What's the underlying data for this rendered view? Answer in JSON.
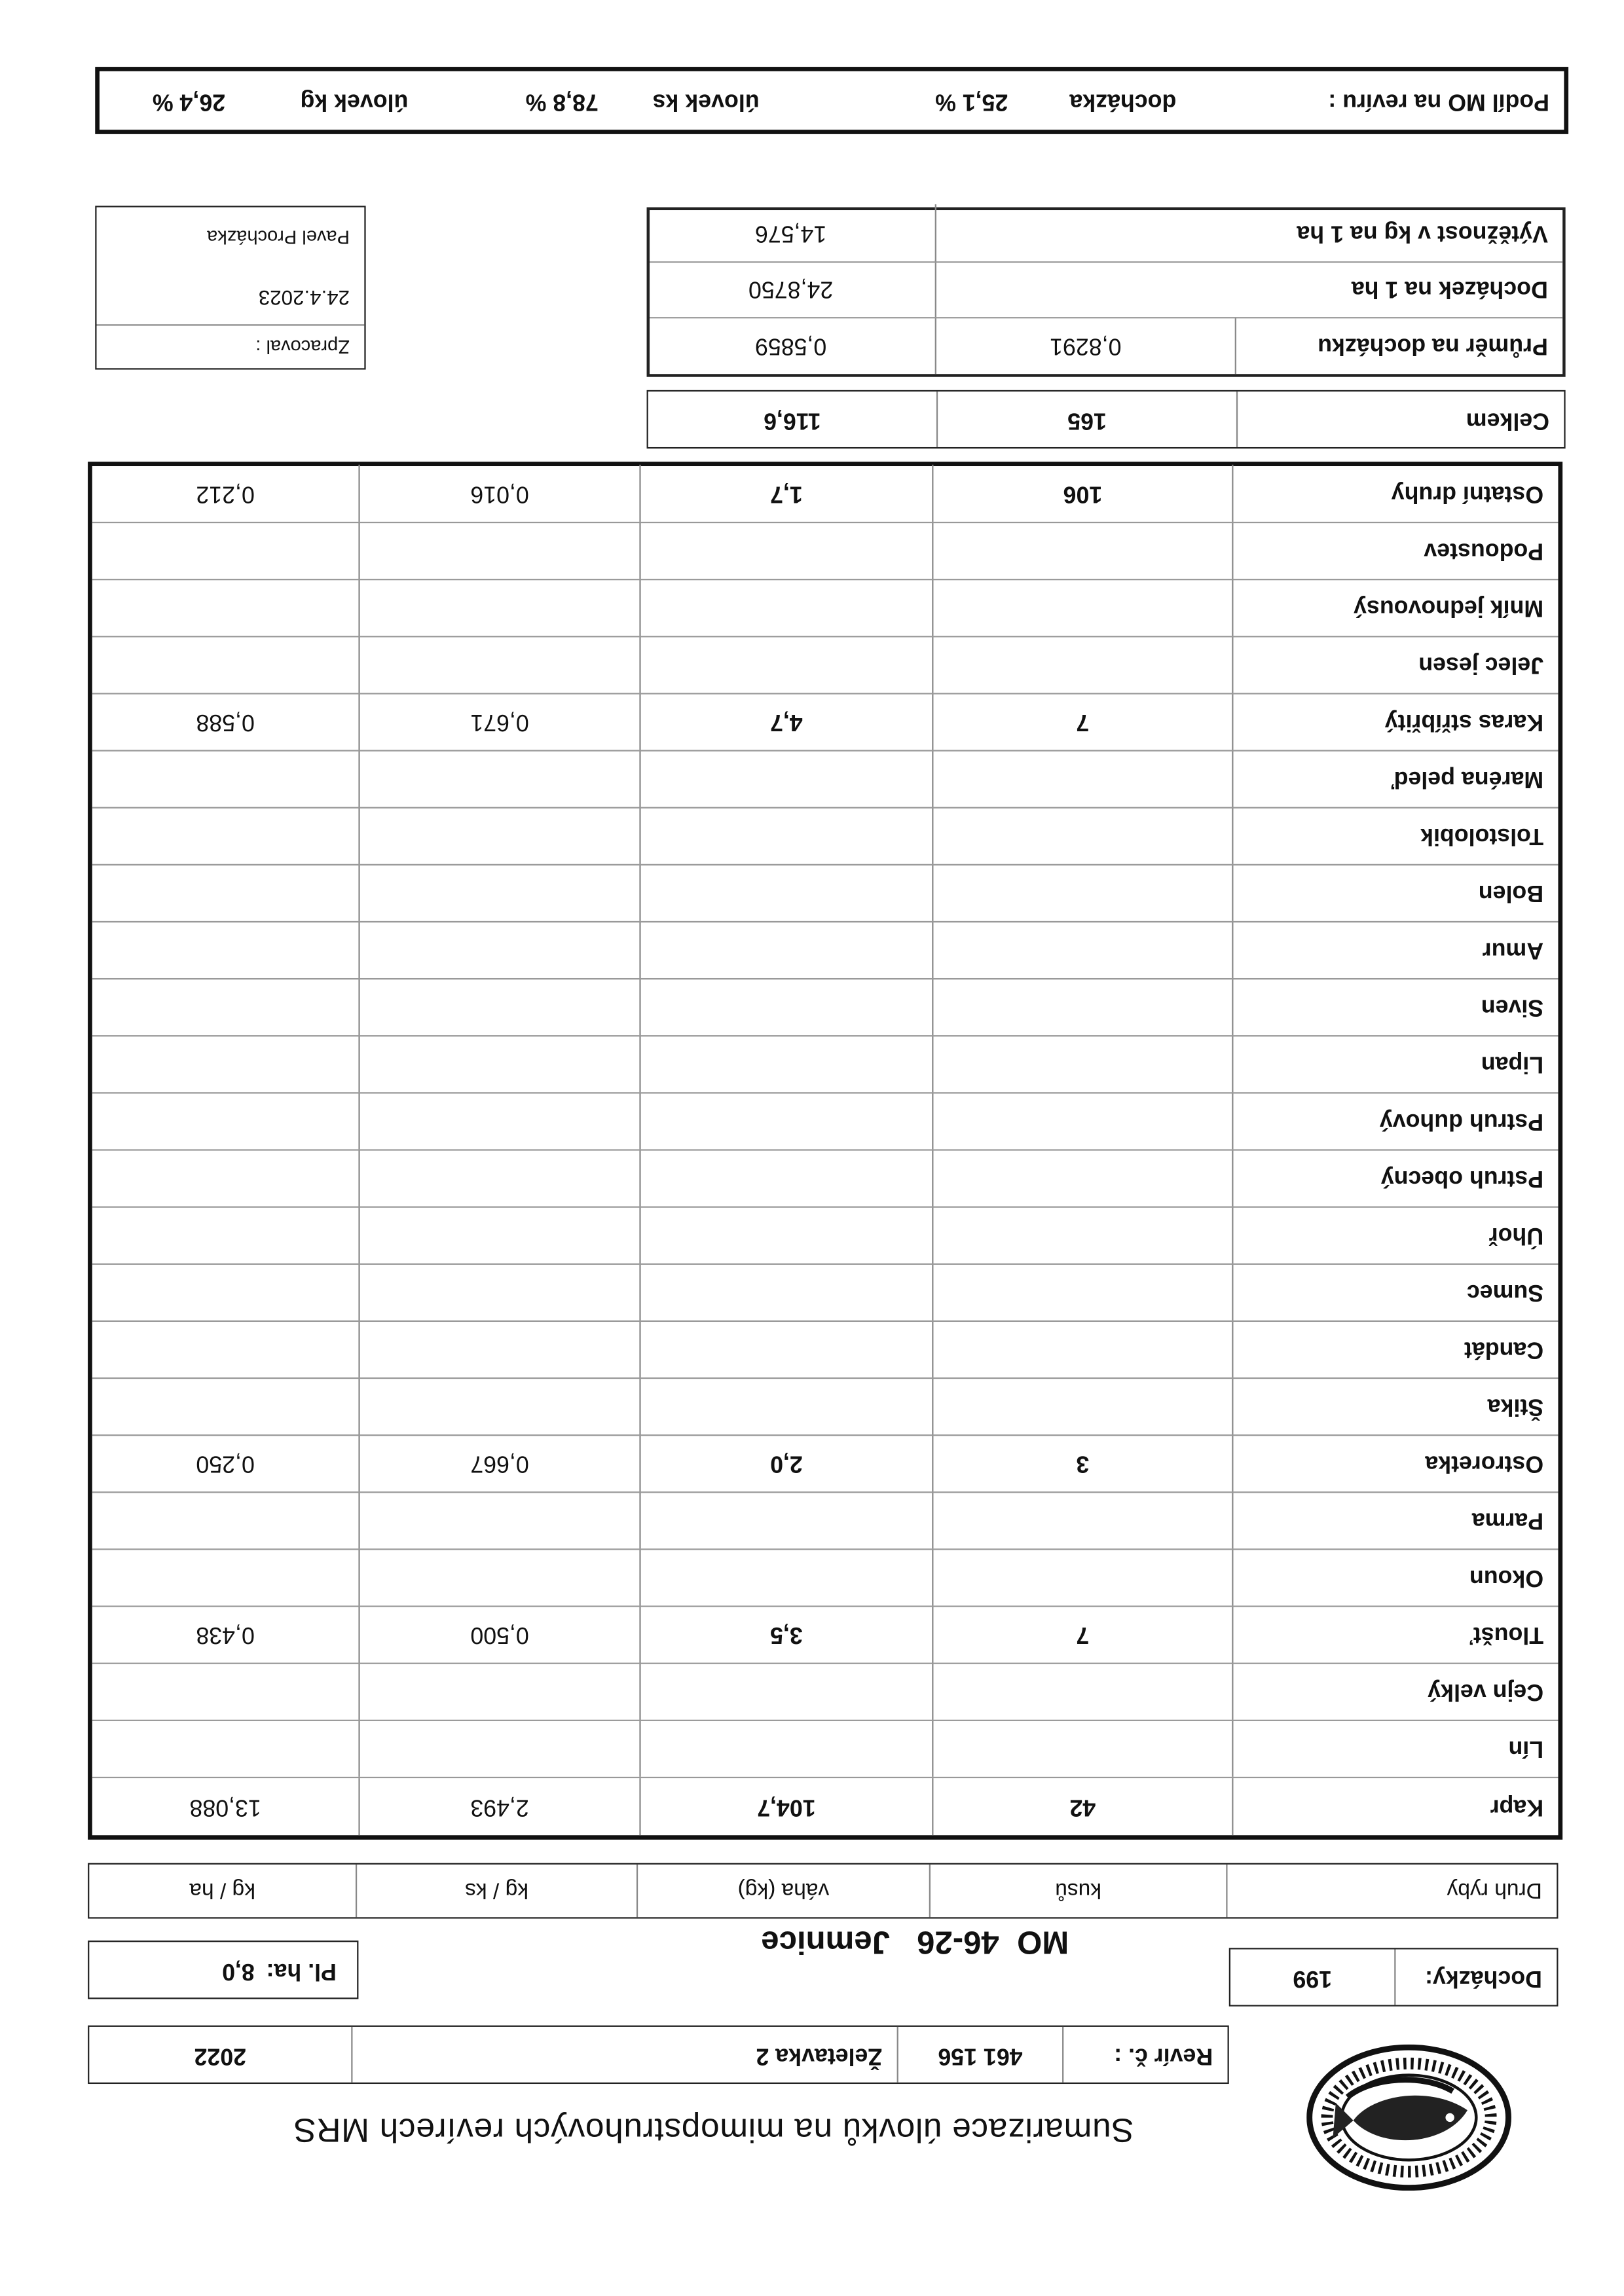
{
  "logo": {
    "name": "logo-mrs",
    "text": "MORAVSKÝ RYBÁŘSKÝ SVAZ"
  },
  "title": "Sumarizace úlovků na mimopstruhových revírech MRS",
  "revir": {
    "label": "Revír č. :",
    "number": "461 156",
    "name": "Želetavka 2",
    "year": "2022"
  },
  "dochazky": {
    "label": "Docházky:",
    "value": "199"
  },
  "mo": {
    "code": "MO  46-26",
    "name": "Jemnice"
  },
  "plocha": {
    "label": "Pl. ha:",
    "value": "8,0"
  },
  "columns": [
    "Druh ryby",
    "kusů",
    "váha (kg)",
    "kg / ks",
    "kg / ha"
  ],
  "rows": [
    {
      "name": "Kapr",
      "kusu": "42",
      "vaha": "104,7",
      "kg_ks": "2,493",
      "kg_ha": "13,088"
    },
    {
      "name": "Lín",
      "kusu": "",
      "vaha": "",
      "kg_ks": "",
      "kg_ha": ""
    },
    {
      "name": "Cejn velký",
      "kusu": "",
      "vaha": "",
      "kg_ks": "",
      "kg_ha": ""
    },
    {
      "name": "Tloušť",
      "kusu": "7",
      "vaha": "3,5",
      "kg_ks": "0,500",
      "kg_ha": "0,438"
    },
    {
      "name": "Okoun",
      "kusu": "",
      "vaha": "",
      "kg_ks": "",
      "kg_ha": ""
    },
    {
      "name": "Parma",
      "kusu": "",
      "vaha": "",
      "kg_ks": "",
      "kg_ha": ""
    },
    {
      "name": "Ostroretka",
      "kusu": "3",
      "vaha": "2,0",
      "kg_ks": "0,667",
      "kg_ha": "0,250"
    },
    {
      "name": "Štika",
      "kusu": "",
      "vaha": "",
      "kg_ks": "",
      "kg_ha": ""
    },
    {
      "name": "Candát",
      "kusu": "",
      "vaha": "",
      "kg_ks": "",
      "kg_ha": ""
    },
    {
      "name": "Sumec",
      "kusu": "",
      "vaha": "",
      "kg_ks": "",
      "kg_ha": ""
    },
    {
      "name": "Úhoř",
      "kusu": "",
      "vaha": "",
      "kg_ks": "",
      "kg_ha": ""
    },
    {
      "name": "Pstruh obecný",
      "kusu": "",
      "vaha": "",
      "kg_ks": "",
      "kg_ha": ""
    },
    {
      "name": "Pstruh duhový",
      "kusu": "",
      "vaha": "",
      "kg_ks": "",
      "kg_ha": ""
    },
    {
      "name": "Lipan",
      "kusu": "",
      "vaha": "",
      "kg_ks": "",
      "kg_ha": ""
    },
    {
      "name": "Siven",
      "kusu": "",
      "vaha": "",
      "kg_ks": "",
      "kg_ha": ""
    },
    {
      "name": "Amur",
      "kusu": "",
      "vaha": "",
      "kg_ks": "",
      "kg_ha": ""
    },
    {
      "name": "Bolen",
      "kusu": "",
      "vaha": "",
      "kg_ks": "",
      "kg_ha": ""
    },
    {
      "name": "Tolstolobik",
      "kusu": "",
      "vaha": "",
      "kg_ks": "",
      "kg_ha": ""
    },
    {
      "name": "Maréna peleď",
      "kusu": "",
      "vaha": "",
      "kg_ks": "",
      "kg_ha": ""
    },
    {
      "name": "Karas stříbřitý",
      "kusu": "7",
      "vaha": "4,7",
      "kg_ks": "0,671",
      "kg_ha": "0,588"
    },
    {
      "name": "Jelec jesen",
      "kusu": "",
      "vaha": "",
      "kg_ks": "",
      "kg_ha": ""
    },
    {
      "name": "Mník jednovousý",
      "kusu": "",
      "vaha": "",
      "kg_ks": "",
      "kg_ha": ""
    },
    {
      "name": "Podoustev",
      "kusu": "",
      "vaha": "",
      "kg_ks": "",
      "kg_ha": ""
    },
    {
      "name": "Ostatní druhy",
      "kusu": "106",
      "vaha": "1,7",
      "kg_ks": "0,016",
      "kg_ha": "0,212"
    }
  ],
  "celkem": {
    "label": "Celkem",
    "kusu": "165",
    "vaha": "116,6"
  },
  "stats": {
    "prumer": {
      "label": "Průměr na docházku",
      "kusu": "0,8291",
      "vaha": "0,5859"
    },
    "dochazek_ha": {
      "label": "Docházek na 1 ha",
      "value": "24,8750"
    },
    "vyteznost": {
      "label": "Výtěžnost v kg na 1 ha",
      "value": "14,576"
    }
  },
  "zpracoval": {
    "label": "Zpracoval :",
    "date": "24.4.2023",
    "name": "Pavel Procházka"
  },
  "podil": {
    "label": "Podíl MO na revíru :",
    "dochazka_label": "docházka",
    "dochazka": "25,1 %",
    "ks_label": "úlovek ks",
    "ks": "78,8 %",
    "kg_label": "úlovek kg",
    "kg": "26,4 %"
  }
}
